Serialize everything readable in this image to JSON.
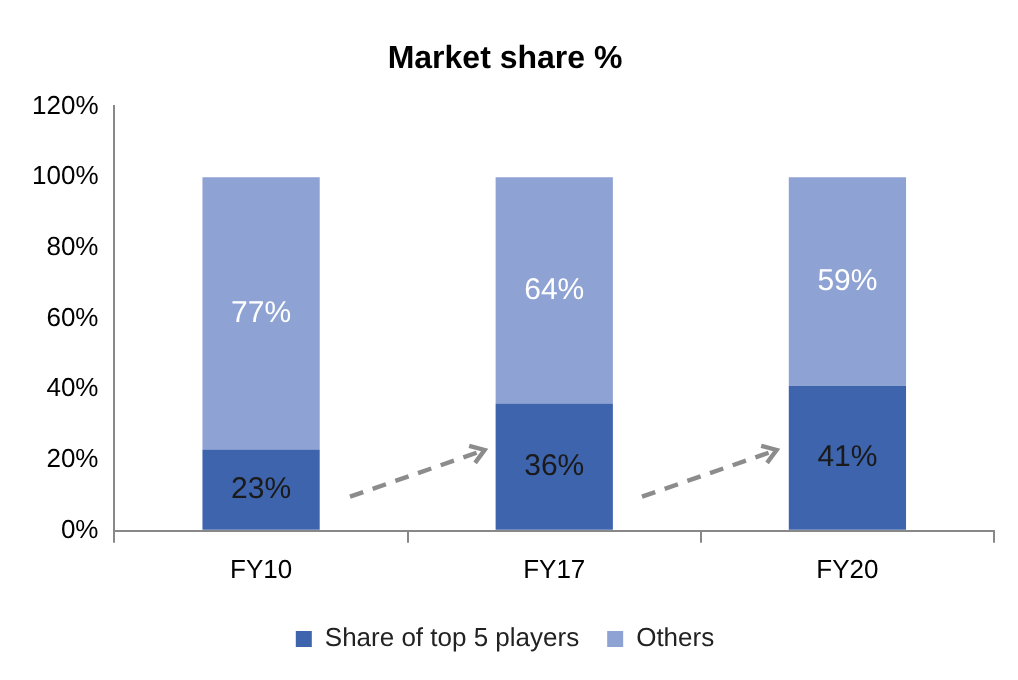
{
  "chart_data": {
    "type": "bar",
    "title": "Market share %",
    "stacked": true,
    "categories": [
      "FY10",
      "FY17",
      "FY20"
    ],
    "series": [
      {
        "name": "Share of top 5 players",
        "color": "#3d64ad",
        "values": [
          23,
          36,
          41
        ],
        "value_labels": [
          "23%",
          "36%",
          "41%"
        ]
      },
      {
        "name": "Others",
        "color": "#8ea3d3",
        "values": [
          77,
          64,
          59
        ],
        "value_labels": [
          "77%",
          "64%",
          "59%"
        ]
      }
    ],
    "ylim": [
      0,
      120
    ],
    "yticks": [
      {
        "value": 0,
        "label": "0%"
      },
      {
        "value": 20,
        "label": "20%"
      },
      {
        "value": 40,
        "label": "40%"
      },
      {
        "value": 60,
        "label": "60%"
      },
      {
        "value": 80,
        "label": "80%"
      },
      {
        "value": 100,
        "label": "100%"
      },
      {
        "value": 120,
        "label": "120%"
      }
    ],
    "grid": false,
    "legend": "bottom"
  }
}
